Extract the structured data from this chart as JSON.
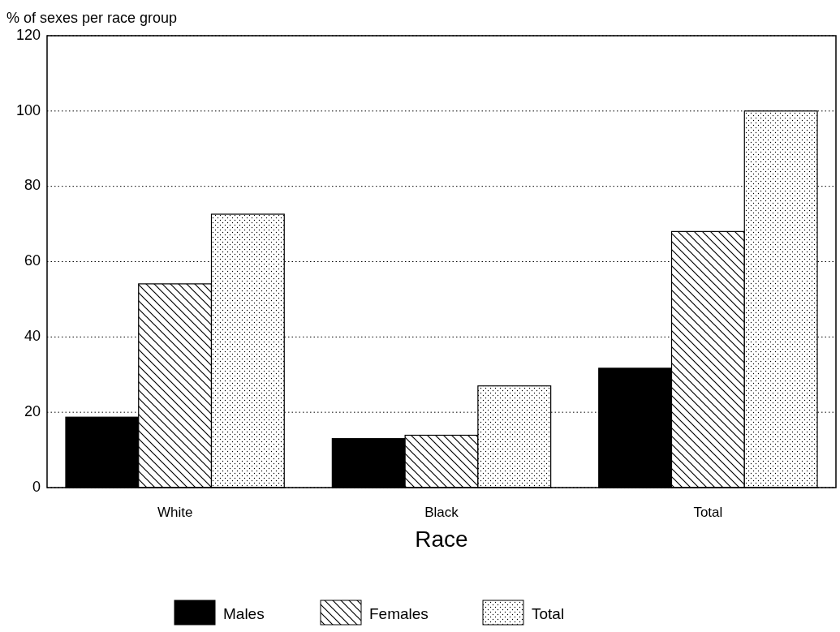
{
  "chart_data": {
    "type": "bar",
    "ylabel": "% of sexes per race group",
    "xlabel": "Race",
    "categories": [
      "White",
      "Black",
      "Total"
    ],
    "series": [
      {
        "name": "Males",
        "color": "#000000",
        "values": [
          18.7,
          13.0,
          31.7
        ]
      },
      {
        "name": "Females",
        "color": "#000000",
        "values": [
          54.1,
          13.9,
          68.0
        ]
      },
      {
        "name": "Total",
        "color": "#000000",
        "values": [
          72.6,
          27.0,
          100
        ]
      }
    ],
    "ylim": [
      0,
      120
    ],
    "yticks": [
      0,
      20,
      40,
      60,
      80,
      100,
      120
    ],
    "grid": "y",
    "legend": "bottom"
  }
}
